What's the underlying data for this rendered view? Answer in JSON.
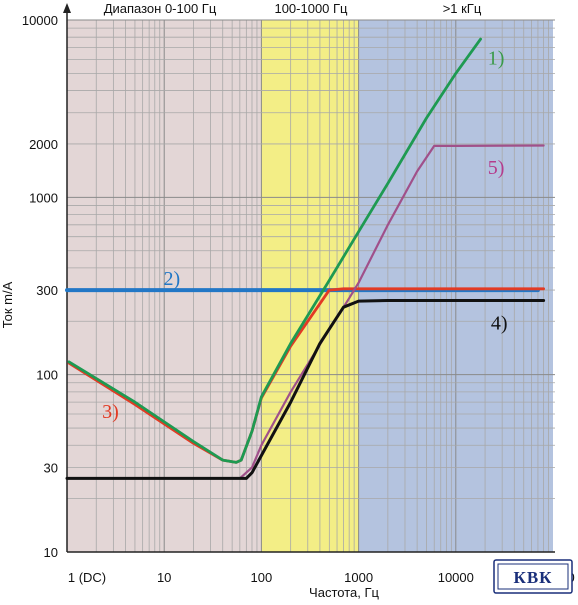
{
  "chart_data": {
    "type": "line",
    "title": "",
    "xlabel": "Частота, Гц",
    "ylabel": "Ток m/A",
    "x_scale": "log",
    "y_scale": "log",
    "xlim": [
      1,
      100000
    ],
    "ylim": [
      10,
      10000
    ],
    "grid": true,
    "x_ticks": [
      {
        "value": 1,
        "label": "1 (DC)"
      },
      {
        "value": 10,
        "label": "10"
      },
      {
        "value": 100,
        "label": "100"
      },
      {
        "value": 1000,
        "label": "1000"
      },
      {
        "value": 10000,
        "label": "10000"
      },
      {
        "value": 100000,
        "label": "100000"
      }
    ],
    "y_ticks": [
      {
        "value": 10,
        "label": "10"
      },
      {
        "value": 30,
        "label": "30"
      },
      {
        "value": 100,
        "label": "100"
      },
      {
        "value": 300,
        "label": "300"
      },
      {
        "value": 1000,
        "label": "1000"
      },
      {
        "value": 2000,
        "label": "2000"
      },
      {
        "value": 10000,
        "label": "10000"
      }
    ],
    "ranges": [
      {
        "label": "Диапазон 0-100 Гц",
        "from": 1,
        "to": 100,
        "color": "#e3d6d6"
      },
      {
        "label": "100-1000 Гц",
        "from": 100,
        "to": 1000,
        "color": "#f3ee86"
      },
      {
        "label": ">1 кГц",
        "from": 1000,
        "to": 100000,
        "color": "#b4c3df"
      }
    ],
    "series": [
      {
        "label": "1)",
        "color": "#1e9a52",
        "label_color": "#3a9a48",
        "label_at": [
          26000,
          5600
        ],
        "points": [
          [
            1.05,
            118
          ],
          [
            5,
            70
          ],
          [
            20,
            42
          ],
          [
            40,
            33
          ],
          [
            55,
            32
          ],
          [
            62,
            33
          ],
          [
            80,
            48
          ],
          [
            100,
            75
          ],
          [
            200,
            150
          ],
          [
            500,
            340
          ],
          [
            1000,
            640
          ],
          [
            2000,
            1200
          ],
          [
            5000,
            2800
          ],
          [
            10000,
            5000
          ],
          [
            18000,
            7800
          ]
        ]
      },
      {
        "label": "2)",
        "color": "#2277c6",
        "label_color": "#2277c6",
        "label_at": [
          12,
          320
        ],
        "points": [
          [
            1,
            300
          ],
          [
            70000,
            300
          ]
        ]
      },
      {
        "label": "3)",
        "color": "#e23a24",
        "label_color": "#e23a24",
        "label_at": [
          2.8,
          57
        ],
        "points": [
          [
            1.05,
            116
          ],
          [
            5,
            68
          ],
          [
            20,
            41
          ],
          [
            40,
            33
          ],
          [
            55,
            32
          ],
          [
            62,
            33
          ],
          [
            80,
            48
          ],
          [
            100,
            74
          ],
          [
            200,
            145
          ],
          [
            500,
            300
          ],
          [
            700,
            305
          ],
          [
            1000,
            305
          ],
          [
            3000,
            305
          ],
          [
            10000,
            305
          ],
          [
            80000,
            305
          ]
        ]
      },
      {
        "label": "4)",
        "color": "#111111",
        "label_color": "#111111",
        "label_at": [
          28000,
          180
        ],
        "points": [
          [
            1,
            26
          ],
          [
            10,
            26
          ],
          [
            50,
            26
          ],
          [
            70,
            26
          ],
          [
            80,
            28
          ],
          [
            100,
            35
          ],
          [
            200,
            70
          ],
          [
            400,
            150
          ],
          [
            700,
            240
          ],
          [
            1000,
            260
          ],
          [
            2000,
            262
          ],
          [
            10000,
            262
          ],
          [
            80000,
            262
          ]
        ]
      },
      {
        "label": "5)",
        "color": "#a0508a",
        "label_color": "#b43c8c",
        "label_at": [
          26000,
          1350
        ],
        "points": [
          [
            60,
            26
          ],
          [
            80,
            30
          ],
          [
            100,
            40
          ],
          [
            200,
            80
          ],
          [
            500,
            180
          ],
          [
            800,
            270
          ],
          [
            1000,
            330
          ],
          [
            2000,
            700
          ],
          [
            4000,
            1400
          ],
          [
            6000,
            1950
          ],
          [
            10000,
            1950
          ],
          [
            80000,
            1960
          ]
        ]
      }
    ]
  },
  "logo": {
    "text": "КВК"
  }
}
